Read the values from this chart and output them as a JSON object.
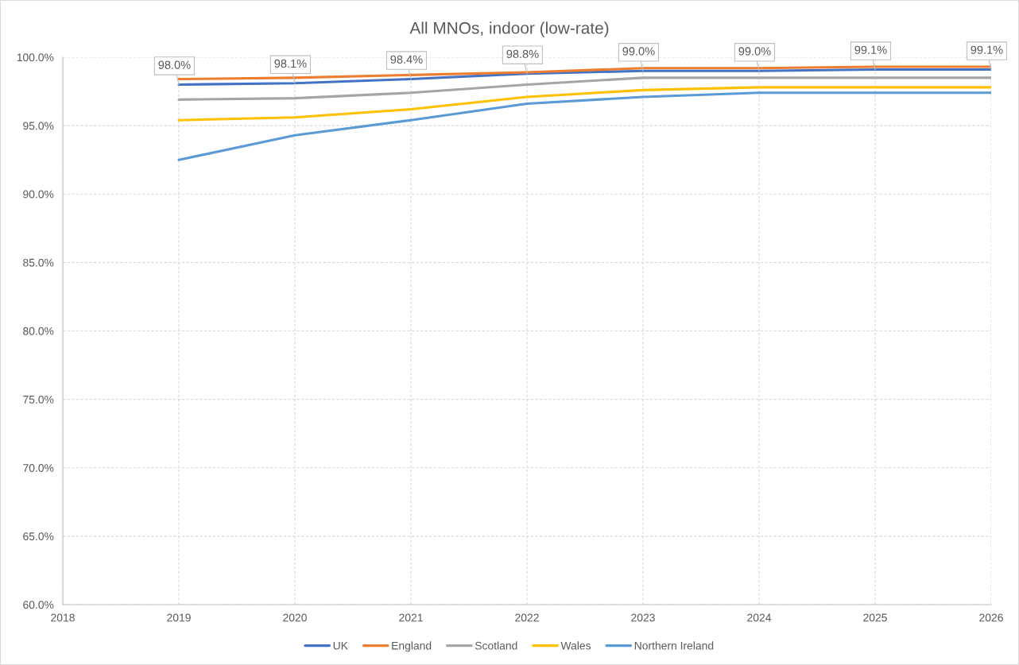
{
  "chart_data": {
    "type": "line",
    "title": "All MNOs, indoor (low-rate)",
    "x": [
      2019,
      2020,
      2021,
      2022,
      2023,
      2024,
      2025,
      2026
    ],
    "series": [
      {
        "name": "UK",
        "color": "#4472c4",
        "values": [
          98.0,
          98.1,
          98.4,
          98.8,
          99.0,
          99.0,
          99.1,
          99.1
        ],
        "value_labels": [
          "98.0%",
          "98.1%",
          "98.4%",
          "98.8%",
          "99.0%",
          "99.0%",
          "99.1%",
          "99.1%"
        ]
      },
      {
        "name": "England",
        "color": "#ed7d31",
        "values": [
          98.4,
          98.5,
          98.7,
          98.9,
          99.2,
          99.2,
          99.3,
          99.3
        ]
      },
      {
        "name": "Scotland",
        "color": "#a5a5a5",
        "values": [
          96.9,
          97.0,
          97.4,
          98.0,
          98.5,
          98.5,
          98.5,
          98.5
        ]
      },
      {
        "name": "Wales",
        "color": "#ffc000",
        "values": [
          95.4,
          95.6,
          96.2,
          97.1,
          97.6,
          97.8,
          97.8,
          97.8
        ]
      },
      {
        "name": "Northern Ireland",
        "color": "#5b9bd5",
        "values": [
          92.5,
          94.3,
          95.4,
          96.6,
          97.1,
          97.4,
          97.4,
          97.4
        ]
      }
    ],
    "xlim": [
      2018,
      2026
    ],
    "xticks": [
      2018,
      2019,
      2020,
      2021,
      2022,
      2023,
      2024,
      2025,
      2026
    ],
    "ylim": [
      60,
      100
    ],
    "yticks": [
      {
        "value": 60,
        "label": "60.0%"
      },
      {
        "value": 65,
        "label": "65.0%"
      },
      {
        "value": 70,
        "label": "70.0%"
      },
      {
        "value": 75,
        "label": "75.0%"
      },
      {
        "value": 80,
        "label": "80.0%"
      },
      {
        "value": 85,
        "label": "85.0%"
      },
      {
        "value": 90,
        "label": "90.0%"
      },
      {
        "value": 95,
        "label": "95.0%"
      },
      {
        "value": 100,
        "label": "100.0%"
      }
    ],
    "grid": true,
    "legend": "bottom",
    "marker": "none",
    "line_style": "solid"
  }
}
